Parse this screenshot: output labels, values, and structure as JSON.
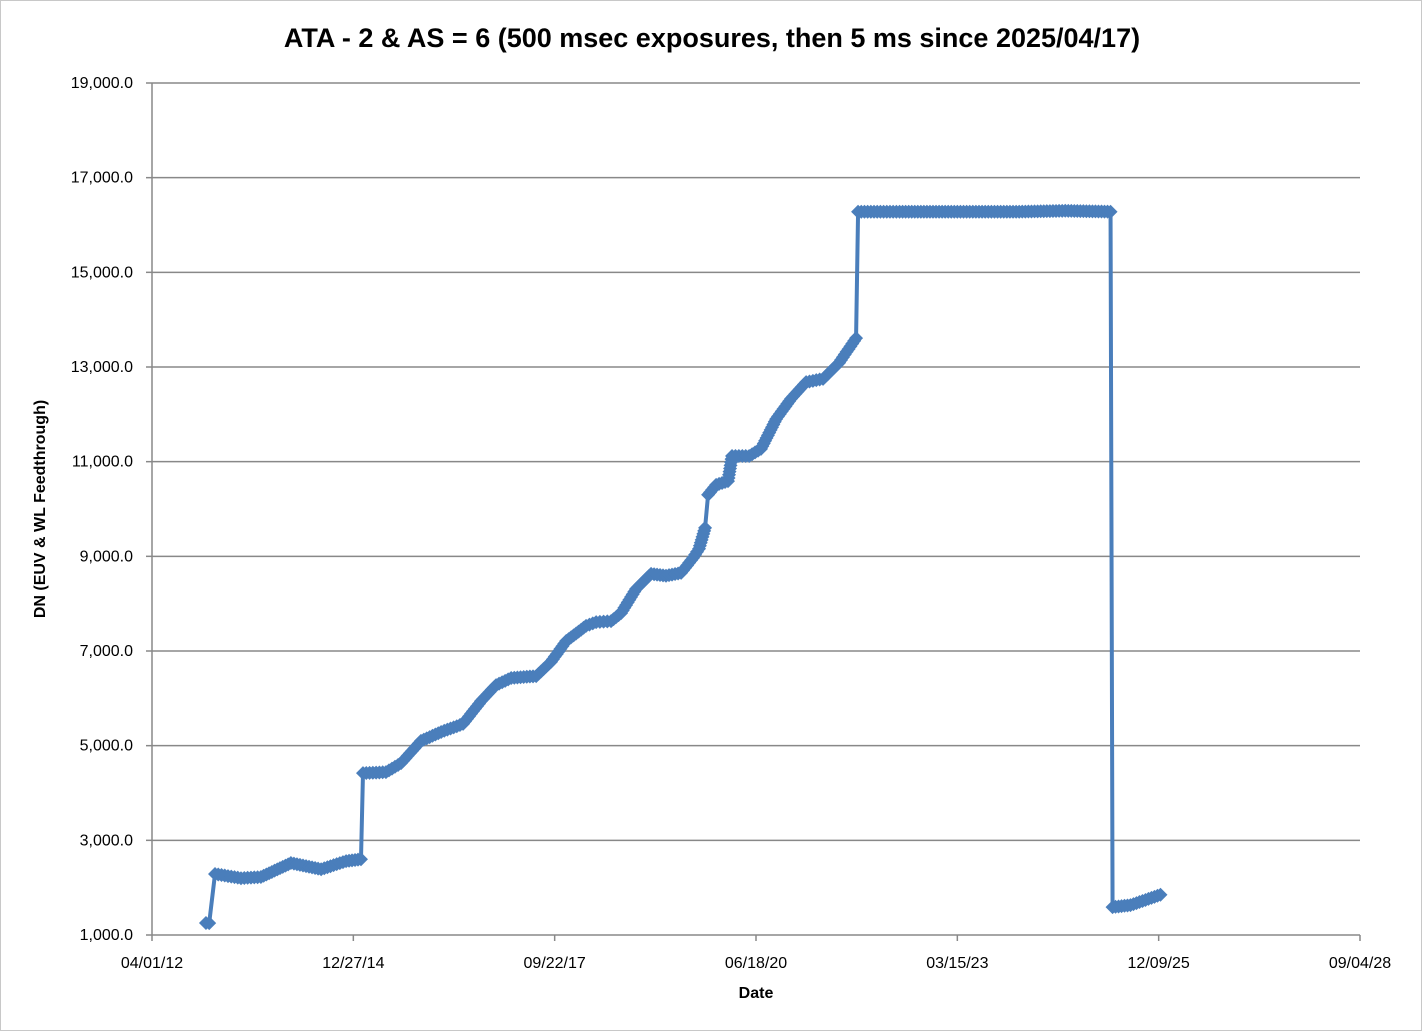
{
  "chart_data": {
    "type": "line",
    "title": "ATA - 2 & AS = 6  (500 msec exposures, then 5 ms since 2025/04/17)",
    "xlabel": "Date",
    "ylabel": "DN (EUV & WL Feedthrough)",
    "xlim": [
      "2012-04-01",
      "2028-09-04"
    ],
    "ylim": [
      1000,
      19000
    ],
    "x_ticks": [
      "04/01/12",
      "12/27/14",
      "09/22/17",
      "06/18/20",
      "03/15/23",
      "12/09/25",
      "09/04/28"
    ],
    "y_ticks": [
      "1,000.0",
      "3,000.0",
      "5,000.0",
      "7,000.0",
      "9,000.0",
      "11,000.0",
      "13,000.0",
      "15,000.0",
      "17,000.0",
      "19,000.0"
    ],
    "grid": "horizontal",
    "legend": "none",
    "marker": "diamond",
    "color": "#4a7ebb",
    "series": [
      {
        "x": [
          "2012-12-25",
          "2013-01-10",
          "2013-02-08",
          "2013-06-17",
          "2013-09-24",
          "2014-02-20",
          "2014-07-20",
          "2014-11-21",
          "2015-02-03",
          "2015-02-13",
          "2015-06-07",
          "2015-08-21",
          "2015-11-28",
          "2016-03-07",
          "2016-06-24",
          "2016-09-21",
          "2016-12-05",
          "2017-02-18",
          "2017-06-22",
          "2017-09-04",
          "2017-11-18",
          "2018-02-25",
          "2018-04-16",
          "2018-06-29",
          "2018-08-18",
          "2018-10-31",
          "2019-01-14",
          "2019-03-29",
          "2019-06-12",
          "2019-08-11",
          "2019-09-09",
          "2019-10-09",
          "2019-10-24",
          "2019-12-03",
          "2020-01-31",
          "2020-02-20",
          "2020-05-15",
          "2020-07-13",
          "2020-09-26",
          "2020-12-09",
          "2021-02-22",
          "2021-05-17",
          "2021-08-05",
          "2021-10-28",
          "2021-11-07",
          "2022-06-01",
          "2023-03-15",
          "2024-01-01",
          "2024-09-01",
          "2025-04-14",
          "2025-04-24",
          "2025-07-22",
          "2025-12-18"
        ],
        "y": [
          1254,
          1250,
          2290,
          2200,
          2225,
          2520,
          2390,
          2560,
          2600,
          4420,
          4440,
          4630,
          5100,
          5290,
          5460,
          5940,
          6280,
          6430,
          6470,
          6770,
          7210,
          7530,
          7610,
          7630,
          7800,
          8310,
          8630,
          8590,
          8650,
          8970,
          9160,
          9600,
          10300,
          10510,
          10590,
          11120,
          11120,
          11270,
          11900,
          12330,
          12680,
          12750,
          13090,
          13610,
          16280,
          16280,
          16280,
          16280,
          16300,
          16280,
          1590,
          1630,
          1850
        ]
      }
    ]
  }
}
